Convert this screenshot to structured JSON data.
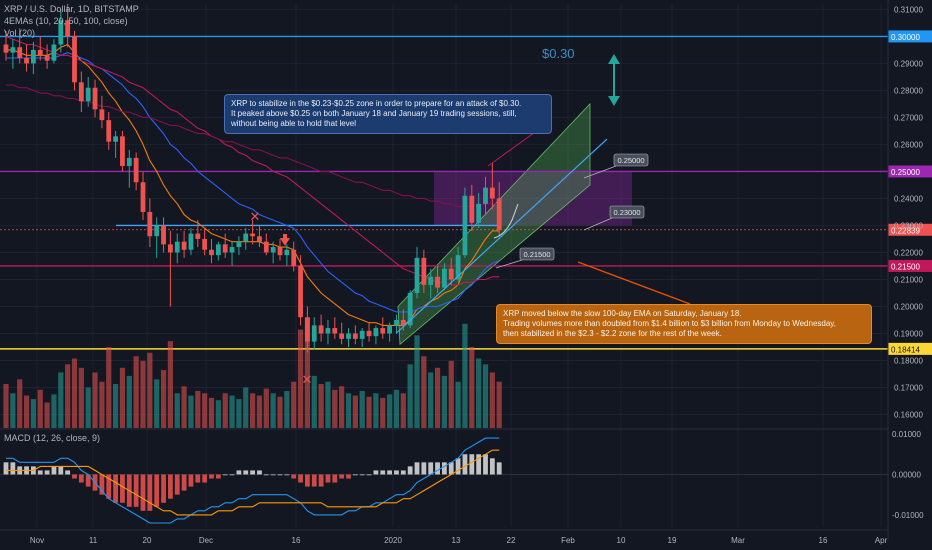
{
  "header": {
    "symbol_line": "XRP / U.S. Dollar, 1D, BITSTAMP",
    "ema_line": "4EMAs (10, 20, 50, 100, close)",
    "vol_line": "Vol (20)",
    "macd_line": "MACD (12, 26, close, 9)"
  },
  "annotations": {
    "target_label": "$0.30",
    "blue_note": [
      "XRP to stabilize in the $0.23-$0.25 zone in order to prepare for an attack of $0.30.",
      "It peaked above $0.25 on both January 18 and January 19 trading sessions, still,",
      "without being able to hold that level"
    ],
    "orange_note": [
      "XRP moved below the slow 100-day EMA on Saturday, January 18.",
      "Trading volumes more than doubled from $1.4 billion to $3 billion from Monday to Wednesday,",
      "then stabilized in the $2.3 - $2.2 zone for the rest of the week."
    ],
    "price_tags": [
      "0.25000",
      "0.23000",
      "0.21500"
    ]
  },
  "chart_data": {
    "type": "candlestick",
    "price_axis": {
      "range": [
        0.155,
        0.312
      ],
      "ticks": [
        "0.31000",
        "0.29000",
        "0.28000",
        "0.27000",
        "0.26000",
        "0.24000",
        "0.23000",
        "0.22000",
        "0.21000",
        "0.20000",
        "0.19000",
        "0.18000",
        "0.17000",
        "0.16000"
      ]
    },
    "macd_axis": {
      "range": [
        -0.013,
        0.011
      ],
      "ticks": [
        "0.01000",
        "0.00000",
        "-0.01000"
      ]
    },
    "x_axis": {
      "tick_labels": [
        "Nov",
        "11",
        "20",
        "Dec",
        "16",
        "2020",
        "13",
        "22",
        "Feb",
        "10",
        "19",
        "Mar",
        "16",
        "Apr"
      ]
    },
    "horizontal_levels": [
      {
        "price": 0.3,
        "label": "0.30000",
        "color": "#2196f3"
      },
      {
        "price": 0.25,
        "label": "0.25000",
        "color": "#9c27b0"
      },
      {
        "price": 0.2284,
        "label": "0.22839",
        "color": "#ef5350"
      },
      {
        "price": 0.23,
        "label": "",
        "color": "#42a5f5"
      },
      {
        "price": 0.215,
        "label": "0.21500",
        "color": "#c2185b"
      },
      {
        "price": 0.1843,
        "label": "0.18414",
        "color": "#fdd835"
      }
    ],
    "candles_ohlc": [
      [
        0.297,
        0.302,
        0.291,
        0.294
      ],
      [
        0.294,
        0.299,
        0.288,
        0.296
      ],
      [
        0.296,
        0.303,
        0.29,
        0.292
      ],
      [
        0.292,
        0.297,
        0.287,
        0.29
      ],
      [
        0.29,
        0.298,
        0.286,
        0.295
      ],
      [
        0.295,
        0.3,
        0.291,
        0.293
      ],
      [
        0.293,
        0.297,
        0.288,
        0.291
      ],
      [
        0.291,
        0.299,
        0.29,
        0.297
      ],
      [
        0.297,
        0.31,
        0.294,
        0.306
      ],
      [
        0.306,
        0.312,
        0.296,
        0.3
      ],
      [
        0.3,
        0.302,
        0.28,
        0.283
      ],
      [
        0.283,
        0.287,
        0.272,
        0.276
      ],
      [
        0.276,
        0.285,
        0.274,
        0.281
      ],
      [
        0.281,
        0.284,
        0.27,
        0.273
      ],
      [
        0.273,
        0.278,
        0.266,
        0.269
      ],
      [
        0.269,
        0.272,
        0.258,
        0.261
      ],
      [
        0.261,
        0.265,
        0.255,
        0.263
      ],
      [
        0.263,
        0.265,
        0.25,
        0.252
      ],
      [
        0.252,
        0.258,
        0.244,
        0.255
      ],
      [
        0.255,
        0.257,
        0.243,
        0.246
      ],
      [
        0.246,
        0.25,
        0.232,
        0.235
      ],
      [
        0.235,
        0.24,
        0.222,
        0.226
      ],
      [
        0.226,
        0.233,
        0.218,
        0.23
      ],
      [
        0.23,
        0.233,
        0.22,
        0.223
      ],
      [
        0.223,
        0.228,
        0.2,
        0.22
      ],
      [
        0.22,
        0.227,
        0.216,
        0.224
      ],
      [
        0.224,
        0.228,
        0.218,
        0.221
      ],
      [
        0.221,
        0.229,
        0.219,
        0.227
      ],
      [
        0.227,
        0.232,
        0.222,
        0.225
      ],
      [
        0.225,
        0.229,
        0.219,
        0.221
      ],
      [
        0.221,
        0.225,
        0.216,
        0.219
      ],
      [
        0.219,
        0.224,
        0.217,
        0.223
      ],
      [
        0.223,
        0.227,
        0.218,
        0.22
      ],
      [
        0.22,
        0.224,
        0.215,
        0.222
      ],
      [
        0.222,
        0.226,
        0.219,
        0.224
      ],
      [
        0.224,
        0.229,
        0.221,
        0.227
      ],
      [
        0.227,
        0.232,
        0.223,
        0.226
      ],
      [
        0.226,
        0.23,
        0.222,
        0.224
      ],
      [
        0.224,
        0.227,
        0.219,
        0.22
      ],
      [
        0.22,
        0.224,
        0.216,
        0.222
      ],
      [
        0.222,
        0.225,
        0.217,
        0.219
      ],
      [
        0.219,
        0.223,
        0.215,
        0.221
      ],
      [
        0.221,
        0.224,
        0.213,
        0.215
      ],
      [
        0.215,
        0.219,
        0.193,
        0.196
      ],
      [
        0.196,
        0.2,
        0.183,
        0.187
      ],
      [
        0.187,
        0.196,
        0.184,
        0.193
      ],
      [
        0.193,
        0.197,
        0.187,
        0.19
      ],
      [
        0.19,
        0.195,
        0.186,
        0.192
      ],
      [
        0.192,
        0.196,
        0.188,
        0.19
      ],
      [
        0.19,
        0.194,
        0.186,
        0.188
      ],
      [
        0.188,
        0.192,
        0.185,
        0.19
      ],
      [
        0.19,
        0.193,
        0.186,
        0.188
      ],
      [
        0.188,
        0.192,
        0.185,
        0.191
      ],
      [
        0.191,
        0.194,
        0.187,
        0.189
      ],
      [
        0.189,
        0.193,
        0.186,
        0.192
      ],
      [
        0.192,
        0.196,
        0.188,
        0.19
      ],
      [
        0.19,
        0.194,
        0.187,
        0.193
      ],
      [
        0.193,
        0.197,
        0.19,
        0.195
      ],
      [
        0.195,
        0.199,
        0.191,
        0.193
      ],
      [
        0.193,
        0.206,
        0.192,
        0.205
      ],
      [
        0.205,
        0.222,
        0.203,
        0.218
      ],
      [
        0.218,
        0.221,
        0.205,
        0.208
      ],
      [
        0.208,
        0.214,
        0.203,
        0.211
      ],
      [
        0.211,
        0.215,
        0.205,
        0.207
      ],
      [
        0.207,
        0.216,
        0.206,
        0.214
      ],
      [
        0.214,
        0.218,
        0.208,
        0.21
      ],
      [
        0.21,
        0.222,
        0.209,
        0.219
      ],
      [
        0.219,
        0.244,
        0.218,
        0.241
      ],
      [
        0.241,
        0.245,
        0.228,
        0.231
      ],
      [
        0.231,
        0.242,
        0.229,
        0.238
      ],
      [
        0.238,
        0.248,
        0.234,
        0.244
      ],
      [
        0.244,
        0.253,
        0.236,
        0.24
      ],
      [
        0.24,
        0.246,
        0.226,
        0.2284
      ]
    ],
    "volume": [
      38,
      30,
      42,
      28,
      25,
      33,
      22,
      29,
      48,
      55,
      60,
      52,
      35,
      48,
      40,
      70,
      38,
      52,
      45,
      62,
      58,
      65,
      42,
      50,
      75,
      30,
      36,
      28,
      32,
      30,
      26,
      24,
      30,
      28,
      25,
      35,
      30,
      28,
      34,
      30,
      27,
      32,
      40,
      85,
      95,
      45,
      38,
      40,
      33,
      36,
      30,
      28,
      32,
      27,
      30,
      26,
      29,
      33,
      30,
      55,
      80,
      62,
      48,
      52,
      45,
      58,
      40,
      90,
      70,
      60,
      55,
      48,
      40
    ],
    "ema_series": [
      {
        "period": 10,
        "color": "#f57c00",
        "values": [
          0.295,
          0.295,
          0.294,
          0.293,
          0.293,
          0.293,
          0.293,
          0.294,
          0.296,
          0.297,
          0.294,
          0.291,
          0.289,
          0.286,
          0.283,
          0.279,
          0.276,
          0.272,
          0.269,
          0.265,
          0.26,
          0.254,
          0.25,
          0.245,
          0.241,
          0.238,
          0.234,
          0.232,
          0.231,
          0.229,
          0.227,
          0.226,
          0.225,
          0.224,
          0.224,
          0.224,
          0.224,
          0.224,
          0.223,
          0.223,
          0.222,
          0.222,
          0.221,
          0.216,
          0.211,
          0.208,
          0.205,
          0.203,
          0.201,
          0.199,
          0.197,
          0.196,
          0.195,
          0.194,
          0.194,
          0.193,
          0.193,
          0.193,
          0.193,
          0.195,
          0.199,
          0.2,
          0.202,
          0.203,
          0.205,
          0.206,
          0.208,
          0.214,
          0.217,
          0.221,
          0.225,
          0.228,
          0.228
        ]
      },
      {
        "period": 20,
        "color": "#2962ff",
        "values": [
          0.292,
          0.292,
          0.292,
          0.292,
          0.292,
          0.292,
          0.292,
          0.292,
          0.293,
          0.294,
          0.293,
          0.292,
          0.291,
          0.289,
          0.288,
          0.286,
          0.284,
          0.282,
          0.279,
          0.277,
          0.274,
          0.27,
          0.267,
          0.264,
          0.26,
          0.258,
          0.255,
          0.253,
          0.25,
          0.248,
          0.246,
          0.244,
          0.242,
          0.24,
          0.238,
          0.237,
          0.236,
          0.234,
          0.233,
          0.232,
          0.231,
          0.23,
          0.229,
          0.226,
          0.222,
          0.219,
          0.216,
          0.213,
          0.211,
          0.209,
          0.207,
          0.205,
          0.204,
          0.202,
          0.201,
          0.2,
          0.199,
          0.198,
          0.198,
          0.198,
          0.199,
          0.2,
          0.2,
          0.2,
          0.201,
          0.202,
          0.203,
          0.206,
          0.208,
          0.211,
          0.214,
          0.216,
          0.217
        ]
      },
      {
        "period": 50,
        "color": "#c2185b",
        "values": [
          0.3,
          0.299,
          0.298,
          0.297,
          0.297,
          0.296,
          0.295,
          0.294,
          0.293,
          0.293,
          0.292,
          0.291,
          0.29,
          0.289,
          0.288,
          0.287,
          0.286,
          0.285,
          0.283,
          0.282,
          0.281,
          0.279,
          0.277,
          0.275,
          0.273,
          0.272,
          0.27,
          0.268,
          0.266,
          0.265,
          0.263,
          0.262,
          0.26,
          0.259,
          0.257,
          0.256,
          0.254,
          0.253,
          0.252,
          0.25,
          0.249,
          0.248,
          0.246,
          0.244,
          0.242,
          0.24,
          0.238,
          0.236,
          0.234,
          0.232,
          0.23,
          0.228,
          0.226,
          0.224,
          0.222,
          0.22,
          0.218,
          0.216,
          0.214,
          0.213,
          0.212,
          0.211,
          0.21,
          0.209,
          0.209,
          0.208,
          0.208,
          0.209,
          0.209,
          0.21,
          0.21,
          0.211,
          0.211
        ]
      },
      {
        "period": 100,
        "color": "#880e4f",
        "values": [
          0.282,
          0.282,
          0.281,
          0.281,
          0.28,
          0.279,
          0.279,
          0.278,
          0.278,
          0.277,
          0.277,
          0.276,
          0.276,
          0.275,
          0.274,
          0.274,
          0.273,
          0.272,
          0.272,
          0.271,
          0.27,
          0.27,
          0.269,
          0.268,
          0.267,
          0.267,
          0.266,
          0.265,
          0.264,
          0.264,
          0.263,
          0.262,
          0.261,
          0.261,
          0.26,
          0.259,
          0.258,
          0.258,
          0.257,
          0.256,
          0.255,
          0.255,
          0.254,
          0.253,
          0.252,
          0.251,
          0.25,
          0.25,
          0.249,
          0.248,
          0.247,
          0.246,
          0.246,
          0.245,
          0.244,
          0.243,
          0.243,
          0.242,
          0.241,
          0.241,
          0.24,
          0.24,
          0.239,
          0.239,
          0.238,
          0.238,
          0.237,
          0.237,
          0.237,
          0.237,
          0.238,
          0.238,
          0.238
        ]
      }
    ],
    "macd_hist": [
      0.003,
      0.003,
      0.002,
      0.002,
      0.002,
      0.001,
      0.001,
      0.002,
      0.002,
      0.001,
      -0.001,
      -0.002,
      -0.003,
      -0.004,
      -0.005,
      -0.006,
      -0.007,
      -0.007,
      -0.008,
      -0.008,
      -0.009,
      -0.009,
      -0.008,
      -0.007,
      -0.006,
      -0.005,
      -0.004,
      -0.003,
      -0.002,
      -0.002,
      -0.001,
      -0.001,
      0.0,
      0.0,
      0.001,
      0.001,
      0.001,
      0.001,
      0.0,
      0.0,
      0.0,
      0.0,
      -0.001,
      -0.002,
      -0.003,
      -0.003,
      -0.003,
      -0.002,
      -0.002,
      -0.001,
      -0.001,
      0.0,
      0.0,
      0.0,
      0.001,
      0.001,
      0.001,
      0.001,
      0.001,
      0.002,
      0.003,
      0.003,
      0.003,
      0.003,
      0.003,
      0.003,
      0.004,
      0.005,
      0.005,
      0.005,
      0.005,
      0.004,
      0.003
    ],
    "macd_line": [
      0.004,
      0.004,
      0.003,
      0.003,
      0.003,
      0.003,
      0.003,
      0.003,
      0.004,
      0.004,
      0.003,
      0.001,
      0.0,
      -0.002,
      -0.004,
      -0.006,
      -0.007,
      -0.008,
      -0.009,
      -0.01,
      -0.011,
      -0.012,
      -0.012,
      -0.012,
      -0.012,
      -0.011,
      -0.011,
      -0.01,
      -0.009,
      -0.009,
      -0.008,
      -0.008,
      -0.007,
      -0.007,
      -0.006,
      -0.006,
      -0.005,
      -0.005,
      -0.005,
      -0.005,
      -0.005,
      -0.005,
      -0.006,
      -0.007,
      -0.009,
      -0.01,
      -0.01,
      -0.01,
      -0.01,
      -0.01,
      -0.009,
      -0.009,
      -0.008,
      -0.008,
      -0.007,
      -0.007,
      -0.006,
      -0.005,
      -0.005,
      -0.004,
      -0.002,
      -0.001,
      0.0,
      0.001,
      0.002,
      0.003,
      0.004,
      0.006,
      0.007,
      0.008,
      0.009,
      0.009,
      0.009
    ],
    "signal_line": [
      0.001,
      0.001,
      0.001,
      0.001,
      0.001,
      0.002,
      0.002,
      0.002,
      0.002,
      0.002,
      0.002,
      0.002,
      0.002,
      0.001,
      0.0,
      -0.001,
      -0.002,
      -0.003,
      -0.004,
      -0.005,
      -0.006,
      -0.007,
      -0.008,
      -0.009,
      -0.009,
      -0.01,
      -0.01,
      -0.01,
      -0.01,
      -0.01,
      -0.01,
      -0.009,
      -0.009,
      -0.009,
      -0.008,
      -0.008,
      -0.008,
      -0.007,
      -0.007,
      -0.007,
      -0.007,
      -0.007,
      -0.007,
      -0.007,
      -0.007,
      -0.007,
      -0.007,
      -0.008,
      -0.008,
      -0.008,
      -0.008,
      -0.008,
      -0.008,
      -0.008,
      -0.008,
      -0.007,
      -0.007,
      -0.007,
      -0.006,
      -0.006,
      -0.005,
      -0.004,
      -0.003,
      -0.002,
      -0.001,
      0.0,
      0.001,
      0.002,
      0.003,
      0.004,
      0.005,
      0.006,
      0.006
    ]
  }
}
